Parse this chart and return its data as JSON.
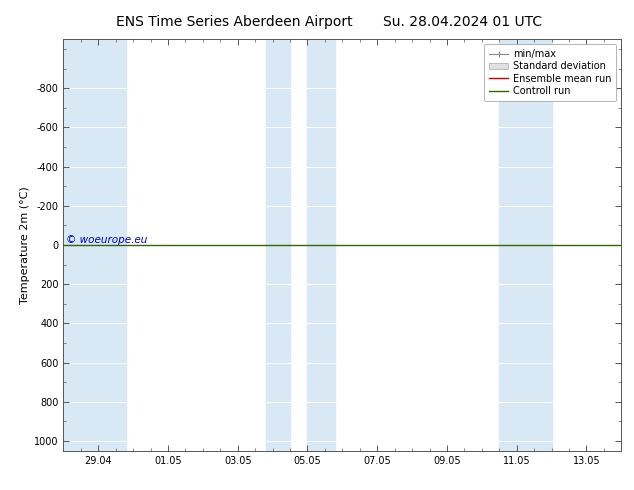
{
  "title_left": "ENS Time Series Aberdeen Airport",
  "title_right": "Su. 28.04.2024 01 UTC",
  "ylabel": "Temperature 2m (°C)",
  "ylim": [
    -1050,
    1050
  ],
  "yticks": [
    -800,
    -600,
    -400,
    -200,
    0,
    200,
    400,
    600,
    800,
    1000
  ],
  "xtick_labels": [
    "29.04",
    "01.05",
    "03.05",
    "05.05",
    "07.05",
    "09.05",
    "11.05",
    "13.05"
  ],
  "xtick_positions": [
    1,
    3,
    5,
    7,
    9,
    11,
    13,
    15
  ],
  "xlim": [
    0,
    16
  ],
  "background_color": "#ffffff",
  "plot_bg_color": "#ffffff",
  "band_color": "#d8e8f5",
  "grid_color": "#ffffff",
  "watermark": "© woeurope.eu",
  "watermark_color": "#0000cc",
  "control_run_color": "#336600",
  "ensemble_mean_color": "#cc0000",
  "minmax_color": "#888888",
  "legend_items": [
    "min/max",
    "Standard deviation",
    "Ensemble mean run",
    "Controll run"
  ],
  "legend_colors": [
    "#888888",
    "#cccccc",
    "#cc0000",
    "#336600"
  ],
  "title_fontsize": 10,
  "axis_fontsize": 8,
  "tick_fontsize": 7,
  "legend_fontsize": 7,
  "band_positions": [
    [
      0,
      1.5
    ],
    [
      4.0,
      6.0
    ],
    [
      7.5,
      8.5
    ],
    [
      11.5,
      13.0
    ]
  ],
  "minor_ytick_interval": 100,
  "minor_xtick_interval": 0.5
}
